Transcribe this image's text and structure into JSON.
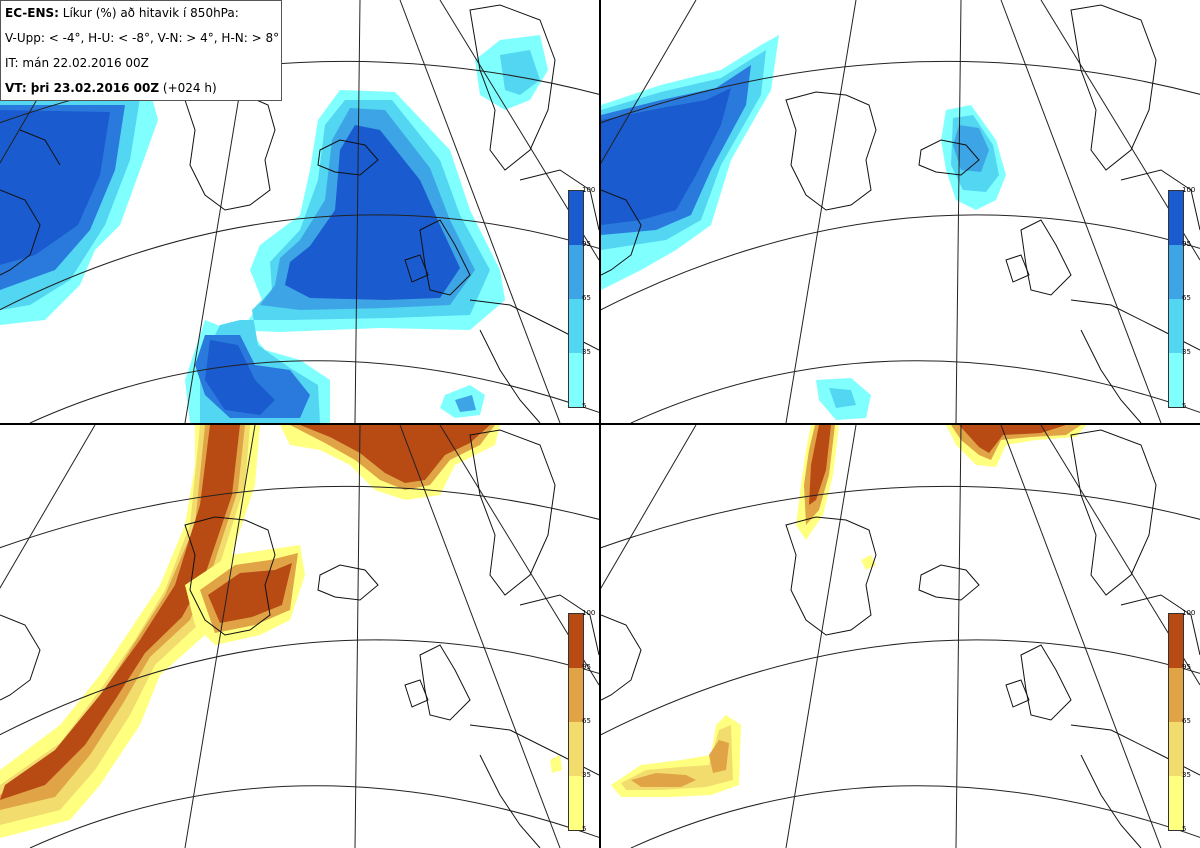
{
  "header": {
    "model": "EC-ENS:",
    "title": "Líkur (%) að hitavik í 850hPa:",
    "thresholds": "V-Upp: < -4°, H-U: < -8°, V-N: > 4°, H-N: > 8°",
    "init_time": "IT: mán 22.02.2016 00Z",
    "valid_label": "VT: þri 23.02.2016 00Z",
    "lead": "(+024 h)"
  },
  "colorbars": {
    "ticks": [
      "100",
      "95",
      "65",
      "35",
      "5"
    ],
    "cold_colors": [
      "#80ffff",
      "#52d6f2",
      "#3da5e6",
      "#2a7ade",
      "#1a5bcf"
    ],
    "warm_colors": [
      "#ffff80",
      "#f2dc6e",
      "#e0a446",
      "#d07a2a",
      "#b84a14"
    ]
  },
  "panels": [
    {
      "id": "top-left",
      "variable": "V-Upp"
    },
    {
      "id": "top-right",
      "variable": "H-U"
    },
    {
      "id": "bottom-left",
      "variable": "V-N"
    },
    {
      "id": "bottom-right",
      "variable": "H-N"
    }
  ]
}
